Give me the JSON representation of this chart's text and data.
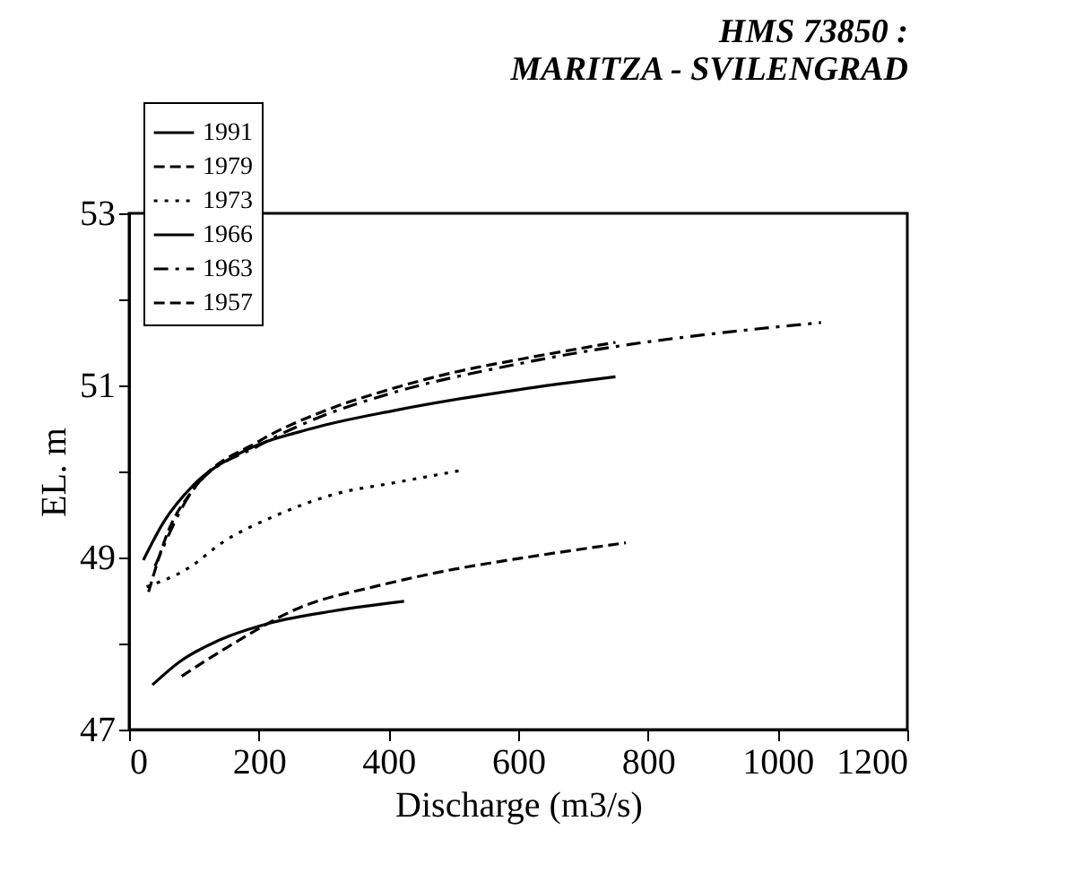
{
  "chart_data": {
    "type": "line",
    "title": [
      "HMS 73850 :",
      "MARITZA - SVILENGRAD"
    ],
    "xlabel": "Discharge (m3/s)",
    "ylabel": "EL. m",
    "xlim": [
      0,
      1200
    ],
    "xticks": [
      0,
      200,
      400,
      600,
      800,
      1000,
      1200
    ],
    "ylim": [
      47,
      53
    ],
    "yticks": [
      47,
      {
        "value": 48,
        "label": null
      },
      49,
      {
        "value": 50,
        "label": null
      },
      51,
      {
        "value": 52,
        "label": null
      },
      53
    ],
    "grid": false,
    "legend": "top left",
    "marker": "none",
    "series": [
      {
        "name": "1991",
        "color": "#000000",
        "line_style": "solid",
        "x": [
          36,
          80,
          136,
          218,
          316,
          424
        ],
        "values": [
          47.52,
          47.8,
          48.03,
          48.24,
          48.38,
          48.49
        ]
      },
      {
        "name": "1979",
        "color": "#000000",
        "line_style": "dashed",
        "x": [
          81,
          150,
          264,
          383,
          492,
          611,
          766
        ],
        "values": [
          47.62,
          47.95,
          48.42,
          48.67,
          48.85,
          49.0,
          49.17
        ]
      },
      {
        "name": "1973",
        "color": "#000000",
        "line_style": "dotted",
        "x": [
          27,
          90,
          145,
          227,
          319,
          410,
          510
        ],
        "values": [
          48.66,
          48.87,
          49.18,
          49.49,
          49.74,
          49.87,
          50.01
        ]
      },
      {
        "name": "1966",
        "color": "#000000",
        "line_style": "solid",
        "x": [
          22,
          54,
          99,
          173,
          282,
          410,
          600,
          750
        ],
        "values": [
          48.97,
          49.42,
          49.84,
          50.22,
          50.5,
          50.71,
          50.95,
          51.1
        ]
      },
      {
        "name": "1963",
        "color": "#000000",
        "line_style": "dashdot",
        "x": [
          40,
          100,
          200,
          300,
          400,
          600,
          775,
          900,
          1067
        ],
        "values": [
          48.9,
          49.8,
          50.3,
          50.65,
          50.9,
          51.25,
          51.48,
          51.6,
          51.73
        ]
      },
      {
        "name": "1957",
        "color": "#000000",
        "line_style": "dashed",
        "x": [
          30,
          60,
          100,
          200,
          300,
          400,
          500,
          600,
          750
        ],
        "values": [
          48.6,
          49.3,
          49.8,
          50.35,
          50.7,
          50.95,
          51.15,
          51.3,
          51.5
        ]
      }
    ]
  }
}
